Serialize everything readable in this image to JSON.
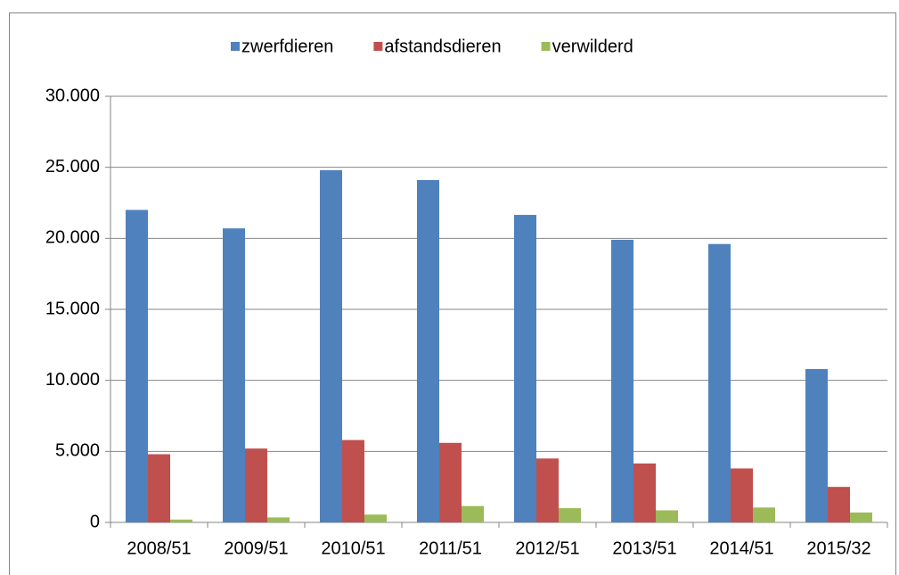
{
  "chart_data": {
    "type": "bar",
    "categories": [
      "2008/51",
      "2009/51",
      "2010/51",
      "2011/51",
      "2012/51",
      "2013/51",
      "2014/51",
      "2015/32"
    ],
    "series": [
      {
        "name": "zwerfdieren",
        "color": "#4f81bd",
        "values": [
          22000,
          20700,
          24800,
          24100,
          21650,
          19900,
          19600,
          10800
        ]
      },
      {
        "name": "afstandsdieren",
        "color": "#c0504d",
        "values": [
          4800,
          5200,
          5800,
          5600,
          4500,
          4150,
          3800,
          2500
        ]
      },
      {
        "name": "verwilderd",
        "color": "#9bbb59",
        "values": [
          200,
          350,
          550,
          1150,
          1000,
          850,
          1050,
          700
        ]
      }
    ],
    "ylim": [
      0,
      30000
    ],
    "yticks": [
      0,
      {
        "value": 5000,
        "label": "5.000"
      },
      {
        "value": 10000,
        "label": "10.000"
      },
      {
        "value": 15000,
        "label": "15.000"
      },
      {
        "value": 20000,
        "label": "20.000"
      },
      {
        "value": 25000,
        "label": "25.000"
      },
      {
        "value": 30000,
        "label": "30.000"
      }
    ],
    "grid": true,
    "legend": "top"
  }
}
